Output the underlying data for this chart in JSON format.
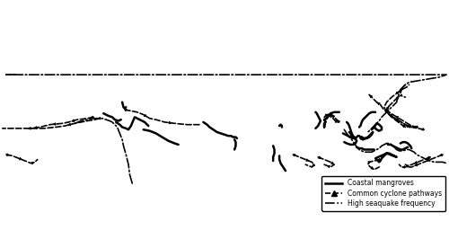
{
  "background_color": "#ffffff",
  "land_color": "#b3b3b3",
  "ocean_color": "#ffffff",
  "border_color": "#000000",
  "border_linewidth": 0.5,
  "legend_items": [
    {
      "label": "Coastal mangroves",
      "linestyle": "-",
      "linewidth": 1.8,
      "color": "#000000",
      "marker": ""
    },
    {
      "label": "Common cyclone pathways",
      "linestyle": "--",
      "linewidth": 1.2,
      "color": "#000000",
      "marker": "^"
    },
    {
      "label": "High seaquake frequency",
      "linestyle": "-.",
      "linewidth": 1.2,
      "color": "#000000",
      "marker": ""
    }
  ],
  "figsize": [
    5.0,
    2.76
  ],
  "dpi": 100,
  "map_extent": [
    -180,
    180,
    -60,
    85
  ]
}
